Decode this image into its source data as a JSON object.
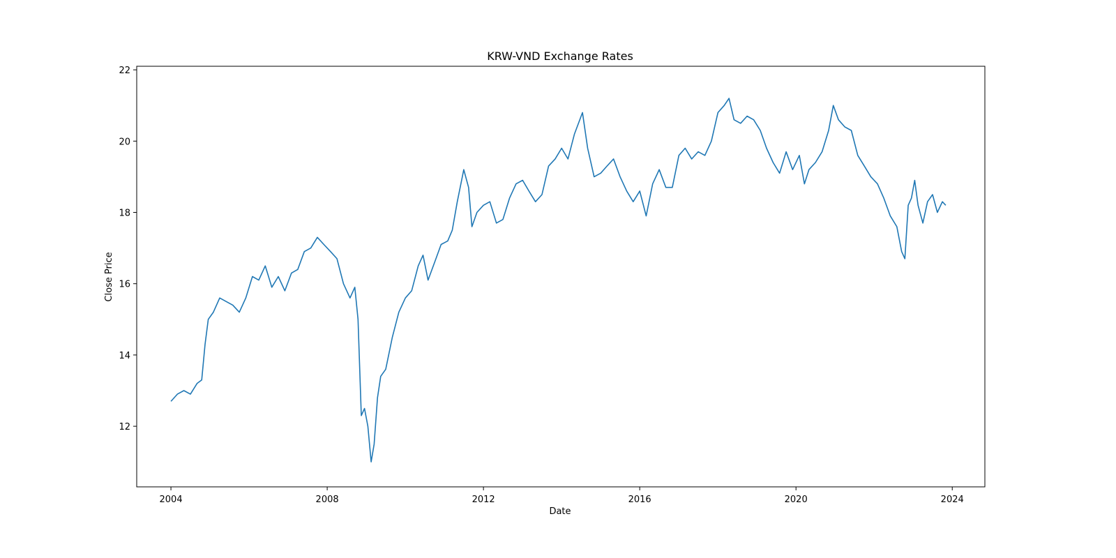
{
  "chart_data": {
    "type": "line",
    "title": "KRW-VND Exchange Rates",
    "xlabel": "Date",
    "ylabel": "Close Price",
    "xlim": [
      "2003-02-15",
      "2024-11-01"
    ],
    "ylim": [
      10.3,
      22.1
    ],
    "x_ticks": [
      "2004",
      "2008",
      "2012",
      "2016",
      "2020",
      "2024"
    ],
    "y_ticks": [
      "12",
      "14",
      "16",
      "18",
      "20",
      "22"
    ],
    "grid": false,
    "legend": "none",
    "line_color": "#1f77b4",
    "series": [
      {
        "x": [
          "2004-01-01",
          "2004-03-01",
          "2004-05-01",
          "2004-07-01",
          "2004-09-01",
          "2004-10-15",
          "2004-11-15",
          "2004-12-15",
          "2005-02-01",
          "2005-04-01",
          "2005-06-01",
          "2005-08-01",
          "2005-10-01",
          "2005-12-01",
          "2006-02-01",
          "2006-04-01",
          "2006-06-01",
          "2006-08-01",
          "2006-10-01",
          "2006-12-01",
          "2007-02-01",
          "2007-04-01",
          "2007-06-01",
          "2007-08-01",
          "2007-10-01",
          "2007-12-01",
          "2008-02-01",
          "2008-04-01",
          "2008-06-01",
          "2008-08-01",
          "2008-09-15",
          "2008-10-15",
          "2008-11-15",
          "2008-12-15",
          "2009-01-15",
          "2009-02-15",
          "2009-03-15",
          "2009-04-15",
          "2009-05-15",
          "2009-07-01",
          "2009-09-01",
          "2009-11-01",
          "2010-01-01",
          "2010-03-01",
          "2010-05-01",
          "2010-06-15",
          "2010-08-01",
          "2010-10-01",
          "2010-12-01",
          "2011-02-01",
          "2011-03-15",
          "2011-05-01",
          "2011-07-01",
          "2011-08-15",
          "2011-09-15",
          "2011-11-01",
          "2012-01-01",
          "2012-03-01",
          "2012-05-01",
          "2012-07-01",
          "2012-09-01",
          "2012-11-01",
          "2013-01-01",
          "2013-03-01",
          "2013-05-01",
          "2013-07-01",
          "2013-09-01",
          "2013-11-01",
          "2014-01-01",
          "2014-03-01",
          "2014-05-01",
          "2014-07-15",
          "2014-09-01",
          "2014-11-01",
          "2015-01-01",
          "2015-03-01",
          "2015-05-01",
          "2015-07-01",
          "2015-09-01",
          "2015-11-01",
          "2016-01-01",
          "2016-03-01",
          "2016-05-01",
          "2016-07-01",
          "2016-09-01",
          "2016-11-01",
          "2017-01-01",
          "2017-03-01",
          "2017-05-01",
          "2017-07-01",
          "2017-09-01",
          "2017-11-01",
          "2018-01-01",
          "2018-03-01",
          "2018-04-15",
          "2018-06-01",
          "2018-08-01",
          "2018-10-01",
          "2018-12-01",
          "2019-02-01",
          "2019-04-01",
          "2019-06-01",
          "2019-08-01",
          "2019-10-01",
          "2019-12-01",
          "2020-02-01",
          "2020-03-20",
          "2020-05-01",
          "2020-07-01",
          "2020-09-01",
          "2020-11-01",
          "2020-12-15",
          "2021-02-01",
          "2021-04-01",
          "2021-06-01",
          "2021-08-01",
          "2021-10-01",
          "2021-12-01",
          "2022-02-01",
          "2022-04-01",
          "2022-06-01",
          "2022-08-01",
          "2022-09-15",
          "2022-10-15",
          "2022-11-15",
          "2022-12-15",
          "2023-01-15",
          "2023-02-15",
          "2023-04-01",
          "2023-05-15",
          "2023-07-01",
          "2023-08-15",
          "2023-10-01",
          "2023-11-01"
        ],
        "values": [
          12.7,
          12.9,
          13.0,
          12.9,
          13.2,
          13.3,
          14.3,
          15.0,
          15.2,
          15.6,
          15.5,
          15.4,
          15.2,
          15.6,
          16.2,
          16.1,
          16.5,
          15.9,
          16.2,
          15.8,
          16.3,
          16.4,
          16.9,
          17.0,
          17.3,
          17.1,
          16.9,
          16.7,
          16.0,
          15.6,
          15.9,
          15.0,
          12.3,
          12.5,
          12.0,
          11.0,
          11.5,
          12.8,
          13.4,
          13.6,
          14.5,
          15.2,
          15.6,
          15.8,
          16.5,
          16.8,
          16.1,
          16.6,
          17.1,
          17.2,
          17.5,
          18.3,
          19.2,
          18.7,
          17.6,
          18.0,
          18.2,
          18.3,
          17.7,
          17.8,
          18.4,
          18.8,
          18.9,
          18.6,
          18.3,
          18.5,
          19.3,
          19.5,
          19.8,
          19.5,
          20.2,
          20.8,
          19.8,
          19.0,
          19.1,
          19.3,
          19.5,
          19.0,
          18.6,
          18.3,
          18.6,
          17.9,
          18.8,
          19.2,
          18.7,
          18.7,
          19.6,
          19.8,
          19.5,
          19.7,
          19.6,
          20.0,
          20.8,
          21.0,
          21.2,
          20.6,
          20.5,
          20.7,
          20.6,
          20.3,
          19.8,
          19.4,
          19.1,
          19.7,
          19.2,
          19.6,
          18.8,
          19.2,
          19.4,
          19.7,
          20.3,
          21.0,
          20.6,
          20.4,
          20.3,
          19.6,
          19.3,
          19.0,
          18.8,
          18.4,
          17.9,
          17.6,
          16.9,
          16.7,
          18.2,
          18.4,
          18.9,
          18.2,
          17.7,
          18.3,
          18.5,
          18.0,
          18.3,
          18.2
        ]
      }
    ]
  }
}
